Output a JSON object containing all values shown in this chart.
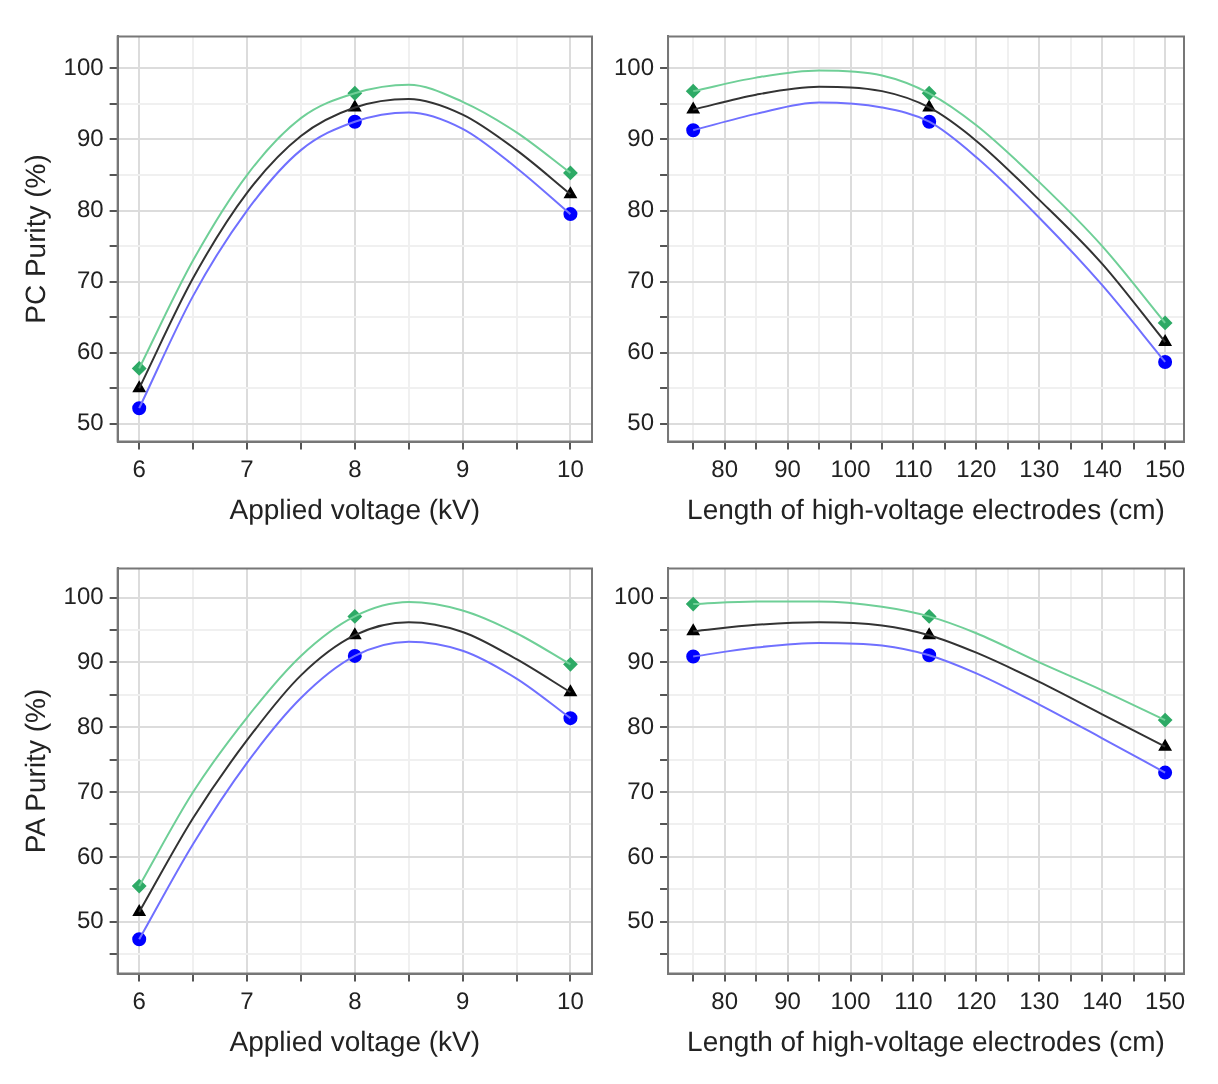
{
  "chart_data": [
    {
      "type": "scatter",
      "ylabel": "PC Purity (%)",
      "xlabel": "Applied voltage (kV)",
      "xlim": [
        5.8,
        10.2
      ],
      "ylim": [
        47.5,
        104.5
      ],
      "grid": true,
      "legend": false,
      "xticks": [
        6,
        {
          "value": 6.5,
          "label": null
        },
        7,
        {
          "value": 7.5,
          "label": null
        },
        8,
        {
          "value": 8.5,
          "label": null
        },
        9,
        {
          "value": 9.5,
          "label": null
        },
        10
      ],
      "yticks": [
        50,
        {
          "value": 55,
          "label": null
        },
        60,
        {
          "value": 65,
          "label": null
        },
        70,
        {
          "value": 75,
          "label": null
        },
        80,
        {
          "value": 85,
          "label": null
        },
        90,
        {
          "value": 95,
          "label": null
        },
        100
      ],
      "series": [
        {
          "type": "line",
          "marker": "none",
          "color": "#6fcf97",
          "x": [
            6,
            6.5,
            7,
            7.5,
            8,
            8.5,
            9,
            9.5,
            10
          ],
          "values": [
            57.8,
            73,
            85,
            93,
            96.5,
            97.7,
            95.3,
            91,
            85.3
          ]
        },
        {
          "type": "line",
          "marker": "none",
          "color": "#333333",
          "x": [
            6,
            6.5,
            7,
            7.5,
            8,
            8.5,
            9,
            9.5,
            10
          ],
          "values": [
            55,
            70.5,
            82.5,
            90.5,
            94.5,
            95.7,
            93.5,
            88.5,
            82.3
          ]
        },
        {
          "type": "line",
          "marker": "none",
          "color": "#7070ff",
          "x": [
            6,
            6.5,
            7,
            7.5,
            8,
            8.5,
            9,
            9.5,
            10
          ],
          "values": [
            52.2,
            68,
            80,
            88.5,
            92.5,
            93.8,
            91.5,
            86,
            79.5
          ]
        },
        {
          "type": "scatter",
          "marker": "diamond",
          "color": "#2eaa66",
          "x": [
            6,
            8,
            10
          ],
          "values": [
            57.8,
            96.5,
            85.3
          ]
        },
        {
          "type": "scatter",
          "marker": "triangle",
          "color": "#000000",
          "x": [
            6,
            8,
            10
          ],
          "values": [
            55,
            94.5,
            82.3
          ]
        },
        {
          "type": "scatter",
          "marker": "circle",
          "color": "#0000ff",
          "x": [
            6,
            8,
            10
          ],
          "values": [
            52.2,
            92.5,
            79.5
          ]
        }
      ]
    },
    {
      "type": "scatter",
      "xlabel": "Length of high-voltage electrodes (cm)",
      "xlim": [
        71,
        153
      ],
      "ylim": [
        47.5,
        104.5
      ],
      "grid": true,
      "legend": false,
      "xticks": [
        {
          "value": 75,
          "label": null
        },
        80,
        {
          "value": 85,
          "label": null
        },
        90,
        {
          "value": 95,
          "label": null
        },
        100,
        {
          "value": 105,
          "label": null
        },
        110,
        {
          "value": 115,
          "label": null
        },
        120,
        {
          "value": 125,
          "label": null
        },
        130,
        {
          "value": 135,
          "label": null
        },
        140,
        {
          "value": 145,
          "label": null
        },
        150
      ],
      "yticks": [
        50,
        {
          "value": 55,
          "label": null
        },
        60,
        {
          "value": 65,
          "label": null
        },
        70,
        {
          "value": 75,
          "label": null
        },
        80,
        {
          "value": 85,
          "label": null
        },
        90,
        {
          "value": 95,
          "label": null
        },
        100
      ],
      "series": [
        {
          "type": "line",
          "marker": "none",
          "color": "#6fcf97",
          "x": [
            75,
            85,
            95,
            105,
            112.5,
            120,
            130,
            140,
            150
          ],
          "values": [
            96.8,
            98.7,
            99.7,
            99,
            96.5,
            92,
            84,
            75,
            64.2
          ]
        },
        {
          "type": "line",
          "marker": "none",
          "color": "#333333",
          "x": [
            75,
            85,
            95,
            105,
            112.5,
            120,
            130,
            140,
            150
          ],
          "values": [
            94.2,
            96.3,
            97.4,
            96.8,
            94.5,
            89.8,
            81.5,
            72.5,
            61.5
          ]
        },
        {
          "type": "line",
          "marker": "none",
          "color": "#7070ff",
          "x": [
            75,
            85,
            95,
            105,
            112.5,
            120,
            130,
            140,
            150
          ],
          "values": [
            91.3,
            93.6,
            95.2,
            94.5,
            92.5,
            87.5,
            79,
            69.5,
            58.7
          ]
        },
        {
          "type": "scatter",
          "marker": "diamond",
          "color": "#2eaa66",
          "x": [
            75,
            112.5,
            150
          ],
          "values": [
            96.8,
            96.5,
            64.2
          ]
        },
        {
          "type": "scatter",
          "marker": "triangle",
          "color": "#000000",
          "x": [
            75,
            112.5,
            150
          ],
          "values": [
            94.2,
            94.5,
            61.5
          ]
        },
        {
          "type": "scatter",
          "marker": "circle",
          "color": "#0000ff",
          "x": [
            75,
            112.5,
            150
          ],
          "values": [
            91.3,
            92.5,
            58.7
          ]
        }
      ]
    },
    {
      "type": "scatter",
      "ylabel": "PA Purity (%)",
      "xlabel": "Applied voltage (kV)",
      "xlim": [
        5.8,
        10.2
      ],
      "ylim": [
        42,
        104.5
      ],
      "grid": true,
      "legend": false,
      "xticks": [
        6,
        {
          "value": 6.5,
          "label": null
        },
        7,
        {
          "value": 7.5,
          "label": null
        },
        8,
        {
          "value": 8.5,
          "label": null
        },
        9,
        {
          "value": 9.5,
          "label": null
        },
        10
      ],
      "yticks": [
        {
          "value": 45,
          "label": null
        },
        50,
        {
          "value": 55,
          "label": null
        },
        60,
        {
          "value": 65,
          "label": null
        },
        70,
        {
          "value": 75,
          "label": null
        },
        80,
        {
          "value": 85,
          "label": null
        },
        90,
        {
          "value": 95,
          "label": null
        },
        100
      ],
      "series": [
        {
          "type": "line",
          "marker": "none",
          "color": "#6fcf97",
          "x": [
            6,
            6.5,
            7,
            7.5,
            8,
            8.5,
            9,
            9.5,
            10
          ],
          "values": [
            55.5,
            70,
            81.5,
            91,
            97.1,
            99.3,
            98,
            94.5,
            89.7
          ]
        },
        {
          "type": "line",
          "marker": "none",
          "color": "#333333",
          "x": [
            6,
            6.5,
            7,
            7.5,
            8,
            8.5,
            9,
            9.5,
            10
          ],
          "values": [
            51.5,
            66,
            78,
            88,
            94.2,
            96.2,
            94.7,
            90.5,
            85.4
          ]
        },
        {
          "type": "line",
          "marker": "none",
          "color": "#7070ff",
          "x": [
            6,
            6.5,
            7,
            7.5,
            8,
            8.5,
            9,
            9.5,
            10
          ],
          "values": [
            47.3,
            62,
            74.5,
            84.5,
            91,
            93.2,
            91.8,
            87.5,
            81.4
          ]
        },
        {
          "type": "scatter",
          "marker": "diamond",
          "color": "#2eaa66",
          "x": [
            6,
            8,
            10
          ],
          "values": [
            55.5,
            97.1,
            89.7
          ]
        },
        {
          "type": "scatter",
          "marker": "triangle",
          "color": "#000000",
          "x": [
            6,
            8,
            10
          ],
          "values": [
            51.5,
            94.2,
            85.4
          ]
        },
        {
          "type": "scatter",
          "marker": "circle",
          "color": "#0000ff",
          "x": [
            6,
            8,
            10
          ],
          "values": [
            47.3,
            91,
            81.4
          ]
        }
      ]
    },
    {
      "type": "scatter",
      "xlabel": "Length of high-voltage electrodes (cm)",
      "xlim": [
        71,
        153
      ],
      "ylim": [
        42,
        104.5
      ],
      "grid": true,
      "legend": false,
      "xticks": [
        {
          "value": 75,
          "label": null
        },
        80,
        {
          "value": 85,
          "label": null
        },
        90,
        {
          "value": 95,
          "label": null
        },
        100,
        {
          "value": 105,
          "label": null
        },
        110,
        {
          "value": 115,
          "label": null
        },
        120,
        {
          "value": 125,
          "label": null
        },
        130,
        {
          "value": 135,
          "label": null
        },
        140,
        {
          "value": 145,
          "label": null
        },
        150
      ],
      "yticks": [
        {
          "value": 45,
          "label": null
        },
        50,
        {
          "value": 55,
          "label": null
        },
        60,
        {
          "value": 65,
          "label": null
        },
        70,
        {
          "value": 75,
          "label": null
        },
        80,
        {
          "value": 85,
          "label": null
        },
        90,
        {
          "value": 95,
          "label": null
        },
        100
      ],
      "series": [
        {
          "type": "line",
          "marker": "none",
          "color": "#6fcf97",
          "x": [
            75,
            85,
            95,
            105,
            112.5,
            120,
            130,
            140,
            150
          ],
          "values": [
            99,
            99.4,
            99.4,
            98.6,
            97.1,
            94.5,
            90,
            85.7,
            81.1
          ]
        },
        {
          "type": "line",
          "marker": "none",
          "color": "#333333",
          "x": [
            75,
            85,
            95,
            105,
            112.5,
            120,
            130,
            140,
            150
          ],
          "values": [
            94.8,
            95.8,
            96.2,
            95.7,
            94.2,
            91.5,
            87,
            82,
            77
          ]
        },
        {
          "type": "line",
          "marker": "none",
          "color": "#7070ff",
          "x": [
            75,
            85,
            95,
            105,
            112.5,
            120,
            130,
            140,
            150
          ],
          "values": [
            90.9,
            92.3,
            93,
            92.6,
            91.1,
            88.3,
            83.5,
            78.3,
            73
          ]
        },
        {
          "type": "scatter",
          "marker": "diamond",
          "color": "#2eaa66",
          "x": [
            75,
            112.5,
            150
          ],
          "values": [
            99,
            97.1,
            81.1
          ]
        },
        {
          "type": "scatter",
          "marker": "triangle",
          "color": "#000000",
          "x": [
            75,
            112.5,
            150
          ],
          "values": [
            94.8,
            94.2,
            77
          ]
        },
        {
          "type": "scatter",
          "marker": "circle",
          "color": "#0000ff",
          "x": [
            75,
            112.5,
            150
          ],
          "values": [
            90.9,
            91.1,
            73
          ]
        }
      ]
    }
  ]
}
